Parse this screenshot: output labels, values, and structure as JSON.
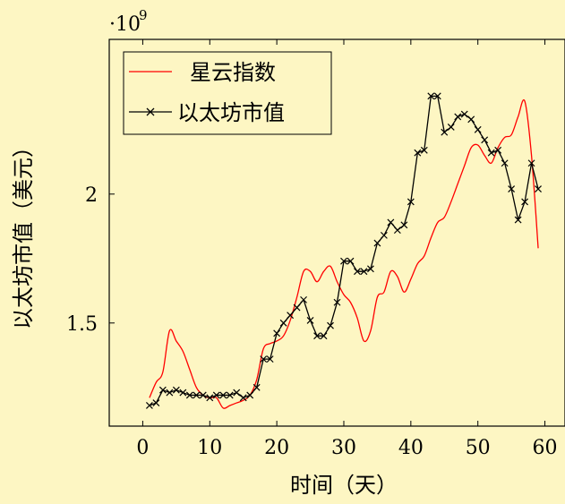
{
  "chart_data": {
    "type": "line",
    "title": "",
    "xlabel": "时间（天）",
    "ylabel": "以太坊市值（美元）",
    "y_scale_label": "·10",
    "y_scale_exponent": "9",
    "xlim": [
      -5,
      63
    ],
    "ylim": [
      1.1,
      2.6
    ],
    "x_ticks": [
      0,
      10,
      20,
      30,
      40,
      50,
      60
    ],
    "y_ticks": [
      1.5,
      2
    ],
    "y_tick_labels": [
      "1.5",
      "2"
    ],
    "grid": false,
    "legend_position": "top-left",
    "series": [
      {
        "name": "星云指数",
        "color": "#ff0000",
        "marker": "none",
        "x": [
          1,
          2,
          3,
          4,
          5,
          6,
          7,
          8,
          9,
          10,
          11,
          12,
          13,
          14,
          15,
          16,
          17,
          18,
          19,
          20,
          21,
          22,
          23,
          24,
          25,
          26,
          27,
          28,
          29,
          30,
          31,
          32,
          33,
          34,
          35,
          36,
          37,
          38,
          39,
          40,
          41,
          42,
          43,
          44,
          45,
          46,
          47,
          48,
          49,
          50,
          51,
          52,
          53,
          54,
          55,
          56,
          57,
          58,
          59
        ],
        "y": [
          1.21,
          1.27,
          1.31,
          1.47,
          1.43,
          1.39,
          1.32,
          1.25,
          1.22,
          1.21,
          1.21,
          1.17,
          1.18,
          1.19,
          1.2,
          1.22,
          1.28,
          1.4,
          1.42,
          1.43,
          1.45,
          1.51,
          1.6,
          1.7,
          1.7,
          1.66,
          1.7,
          1.72,
          1.66,
          1.61,
          1.58,
          1.52,
          1.43,
          1.47,
          1.6,
          1.62,
          1.7,
          1.68,
          1.62,
          1.67,
          1.73,
          1.76,
          1.83,
          1.89,
          1.91,
          1.97,
          2.04,
          2.11,
          2.18,
          2.19,
          2.15,
          2.12,
          2.18,
          2.22,
          2.23,
          2.3,
          2.36,
          2.15,
          1.79
        ]
      },
      {
        "name": "以太坊市值",
        "color": "#000000",
        "marker": "x",
        "x": [
          1,
          2,
          3,
          4,
          5,
          6,
          7,
          8,
          9,
          10,
          11,
          12,
          13,
          14,
          15,
          16,
          17,
          18,
          19,
          20,
          21,
          22,
          23,
          24,
          25,
          26,
          27,
          28,
          29,
          30,
          31,
          32,
          33,
          34,
          35,
          36,
          37,
          38,
          39,
          40,
          41,
          42,
          43,
          44,
          45,
          46,
          47,
          48,
          49,
          50,
          51,
          52,
          53,
          54,
          55,
          56,
          57,
          58,
          59
        ],
        "y": [
          1.18,
          1.19,
          1.24,
          1.23,
          1.24,
          1.23,
          1.22,
          1.22,
          1.22,
          1.21,
          1.22,
          1.22,
          1.22,
          1.23,
          1.21,
          1.22,
          1.25,
          1.36,
          1.36,
          1.46,
          1.5,
          1.53,
          1.56,
          1.59,
          1.51,
          1.45,
          1.45,
          1.49,
          1.58,
          1.74,
          1.74,
          1.7,
          1.7,
          1.71,
          1.81,
          1.84,
          1.89,
          1.86,
          1.88,
          1.97,
          2.16,
          2.17,
          2.38,
          2.38,
          2.24,
          2.26,
          2.3,
          2.31,
          2.29,
          2.25,
          2.21,
          2.16,
          2.17,
          2.12,
          2.02,
          1.9,
          1.97,
          2.12,
          2.02
        ]
      }
    ]
  }
}
